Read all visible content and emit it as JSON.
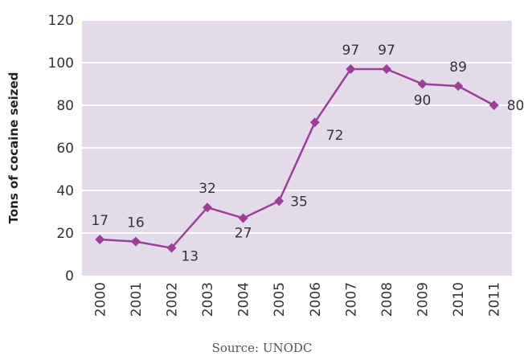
{
  "chart_data": {
    "type": "line",
    "x": [
      "2000",
      "2001",
      "2002",
      "2003",
      "2004",
      "2005",
      "2006",
      "2007",
      "2008",
      "2009",
      "2010",
      "2011"
    ],
    "series": [
      {
        "values": [
          17,
          16,
          13,
          32,
          27,
          35,
          72,
          97,
          97,
          90,
          89,
          80
        ]
      }
    ],
    "data_labels": [
      "17",
      "16",
      "13",
      "32",
      "27",
      "35",
      "72",
      "97",
      "97",
      "90",
      "89",
      "80"
    ],
    "ylabel": "Tons of cocaine seized",
    "ylim": [
      0,
      120
    ],
    "yticks": [
      0,
      20,
      40,
      60,
      80,
      100,
      120
    ],
    "grid": "horizontal",
    "marker": "diamond",
    "colors": {
      "line": "#9b3f97",
      "plot_background": "#e3dbea",
      "grid": "#ffffff"
    }
  },
  "source": "Source: UNODC"
}
